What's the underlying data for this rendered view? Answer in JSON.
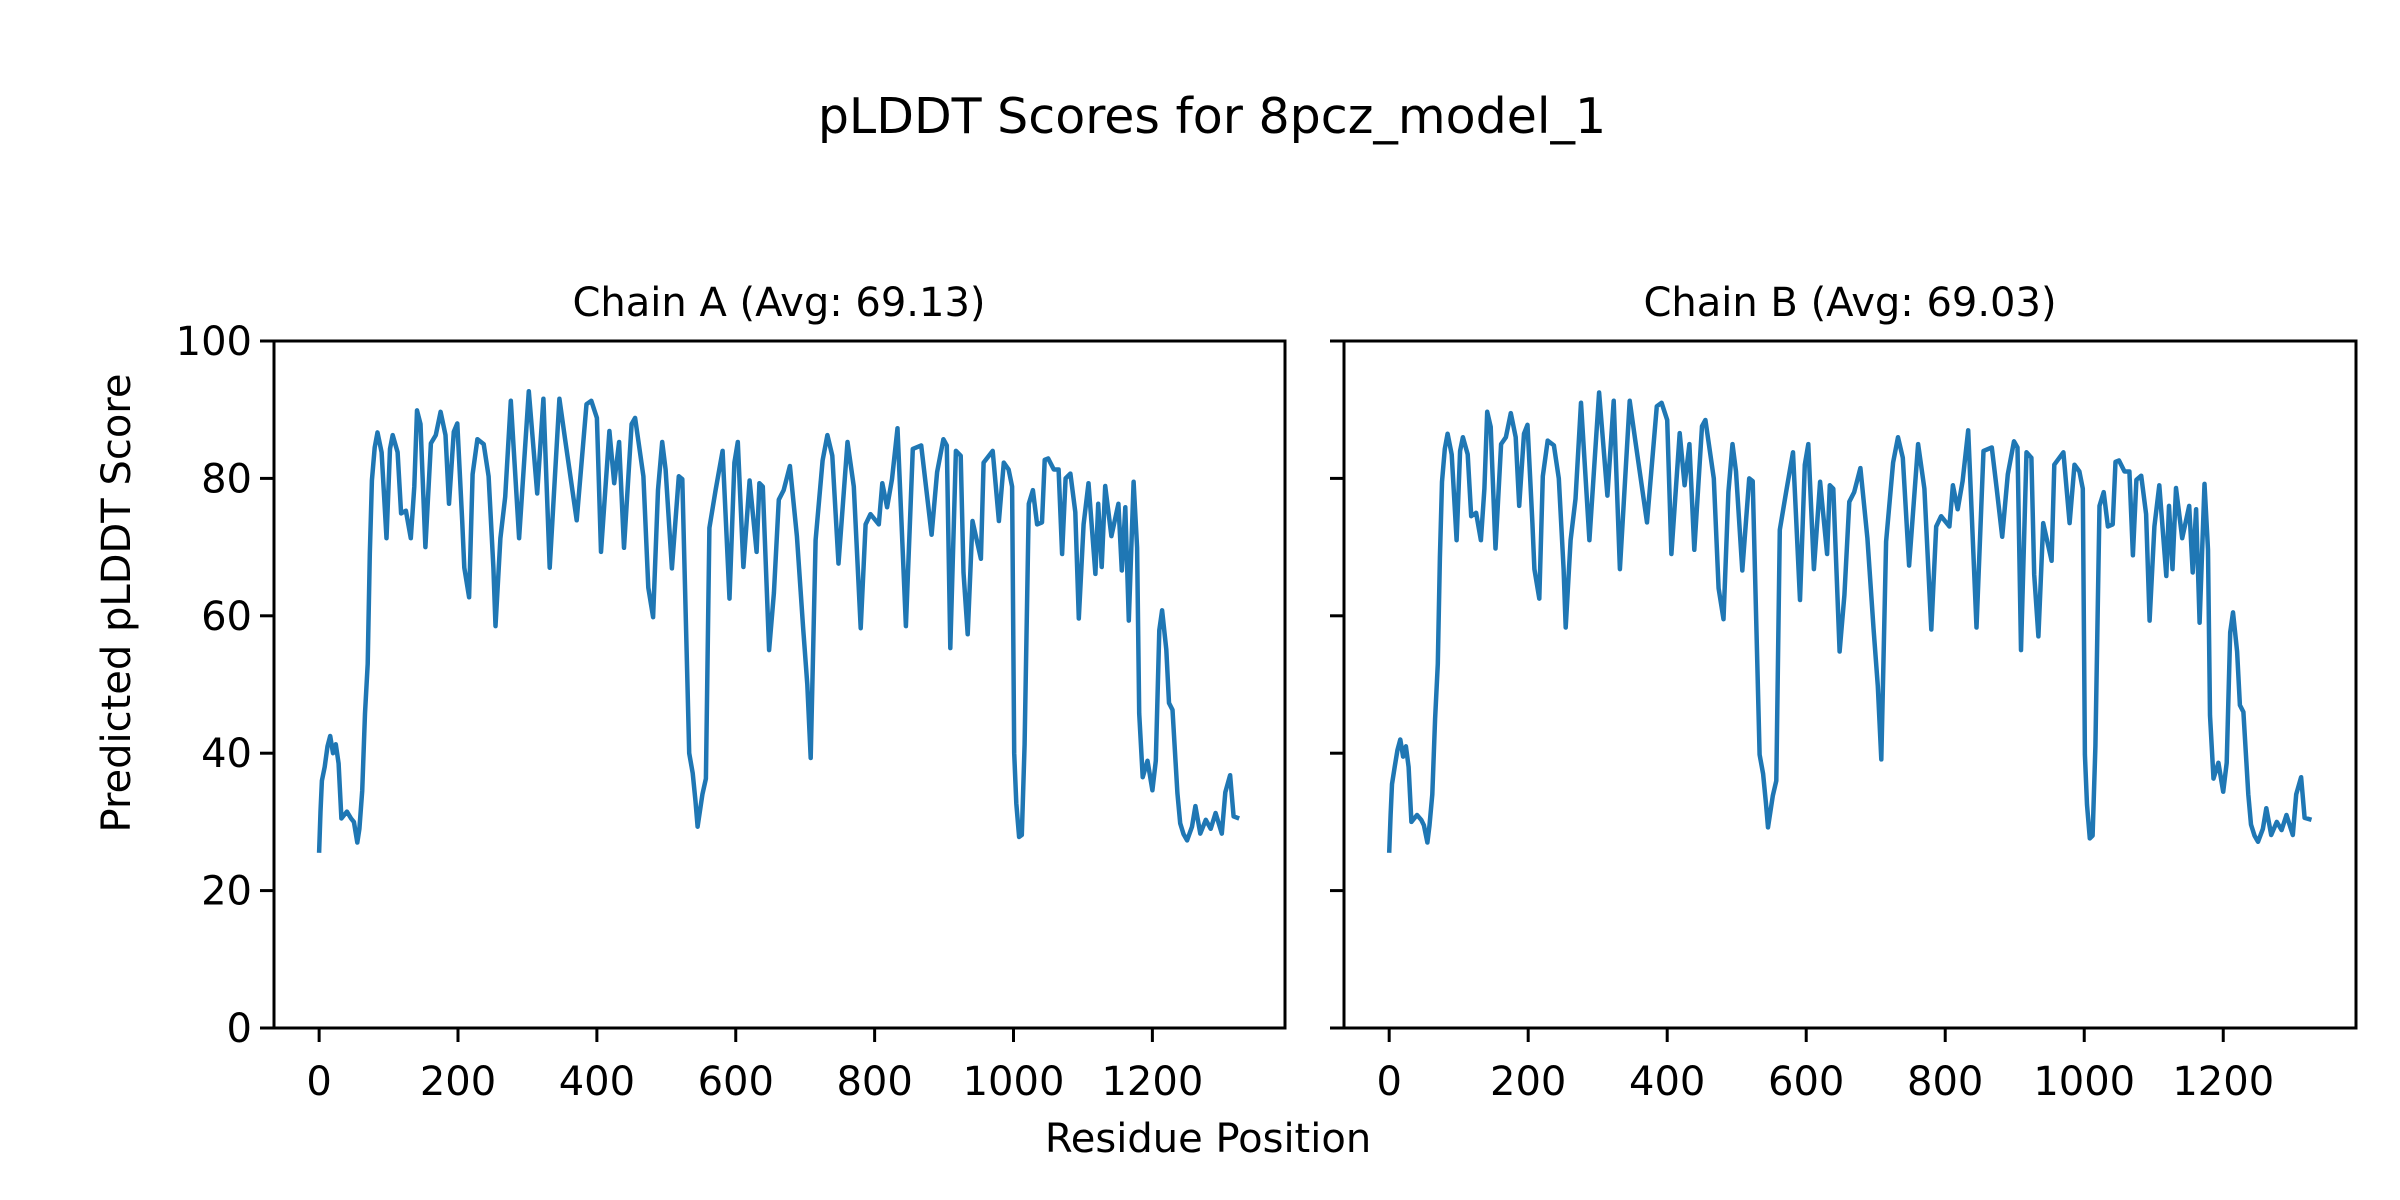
{
  "chart_data": {
    "type": "line",
    "title": "pLDDT Scores for 8pcz_model_1",
    "xlabel": "Residue Position",
    "ylabel": "Predicted pLDDT Score",
    "ylim": [
      0,
      100
    ],
    "xlim": [
      -65,
      1391
    ],
    "grid": false,
    "line_color": "#1f77b4",
    "y_ticks": [
      "0",
      "20",
      "40",
      "60",
      "80",
      "100"
    ],
    "x_ticks": [
      "0",
      "200",
      "400",
      "600",
      "800",
      "1000",
      "1200"
    ],
    "panels": [
      {
        "title": "Chain A (Avg: 69.13)",
        "chain": "A",
        "average": 69.13,
        "x": [
          0,
          2,
          4,
          8,
          12,
          16,
          20,
          24,
          28,
          32,
          40,
          46,
          50,
          55,
          58,
          62,
          66,
          70,
          73,
          76,
          80,
          84,
          90,
          97,
          102,
          106,
          113,
          118,
          125,
          132,
          137,
          141,
          146,
          153,
          161,
          168,
          175,
          182,
          187,
          194,
          199,
          206,
          209,
          216,
          221,
          228,
          237,
          244,
          251,
          254,
          261,
          268,
          276,
          288,
          302,
          314,
          323,
          332,
          346,
          354,
          371,
          385,
          392,
          400,
          406,
          418,
          425,
          432,
          439,
          450,
          455,
          467,
          474,
          481,
          488,
          494,
          499,
          508,
          518,
          523,
          533,
          538,
          542,
          545,
          552,
          557,
          562,
          571,
          581,
          591,
          598,
          603,
          611,
          620,
          630,
          634,
          639,
          648,
          655,
          662,
          669,
          678,
          688,
          697,
          703,
          708,
          715,
          725,
          732,
          739,
          748,
          761,
          770,
          780,
          787,
          794,
          806,
          811,
          818,
          825,
          833,
          845,
          855,
          867,
          874,
          882,
          890,
          899,
          904,
          909,
          917,
          924,
          928,
          934,
          941,
          953,
          957,
          970,
          979,
          986,
          993,
          998,
          1001,
          1004,
          1008,
          1012,
          1016,
          1022,
          1028,
          1034,
          1041,
          1045,
          1050,
          1058,
          1065,
          1070,
          1075,
          1082,
          1089,
          1094,
          1101,
          1108,
          1118,
          1122,
          1127,
          1132,
          1141,
          1151,
          1156,
          1161,
          1166,
          1173,
          1178,
          1181,
          1186,
          1193,
          1200,
          1205,
          1210,
          1214,
          1220,
          1224,
          1229,
          1236,
          1240,
          1245,
          1250,
          1257,
          1262,
          1269,
          1277,
          1284,
          1291,
          1300,
          1305,
          1312,
          1317,
          1325
        ],
        "y": [
          25.5,
          31.5,
          36,
          38,
          41,
          42.5,
          40,
          41.3,
          38.5,
          30.5,
          31.5,
          30.5,
          30,
          27,
          29,
          34.5,
          45.8,
          53,
          69,
          79.7,
          84.5,
          86.7,
          83.8,
          71.3,
          84.3,
          86.3,
          83.8,
          74.9,
          75.3,
          71.3,
          78.8,
          89.9,
          87.9,
          70,
          85.1,
          86.3,
          89.7,
          86.3,
          76.3,
          86.8,
          88,
          73.8,
          67,
          62.7,
          80.6,
          85.7,
          85,
          80.3,
          67,
          58.5,
          71.3,
          77.3,
          91.3,
          71.3,
          92.7,
          77.8,
          91.6,
          67,
          91.6,
          85.9,
          73.9,
          90.8,
          91.3,
          88.8,
          69.3,
          86.9,
          79.3,
          85.3,
          69.9,
          87.9,
          88.8,
          80.3,
          64.1,
          59.8,
          78.3,
          85.3,
          81.3,
          66.9,
          80.3,
          79.9,
          40,
          37.1,
          33,
          29.3,
          34,
          36.3,
          72.8,
          78.3,
          84,
          62.5,
          82.3,
          85.3,
          67.1,
          79.7,
          69.3,
          79.3,
          78.8,
          55,
          63.3,
          76.9,
          78.3,
          81.8,
          71.6,
          58.3,
          50,
          39.3,
          71,
          82.6,
          86.3,
          83.3,
          67.6,
          85.3,
          78.8,
          58.2,
          73.3,
          74.8,
          73.3,
          79.3,
          75.8,
          79.9,
          87.3,
          58.5,
          84.3,
          84.8,
          78.8,
          71.8,
          80.9,
          85.7,
          84.8,
          55.3,
          84,
          83.3,
          66.3,
          57.3,
          73.8,
          68.3,
          82.3,
          84,
          73.8,
          82.3,
          81.3,
          78.8,
          40,
          32.7,
          27.8,
          28.1,
          41.3,
          76.3,
          78.3,
          73.3,
          73.6,
          82.7,
          82.9,
          81.3,
          81.3,
          69,
          80,
          80.7,
          75.1,
          59.6,
          73.3,
          79.3,
          66.1,
          76.3,
          67.1,
          78.9,
          71.6,
          76.3,
          66.6,
          75.8,
          59.3,
          79.5,
          69.9,
          45.8,
          36.5,
          38.9,
          34.6,
          38.9,
          57.9,
          60.8,
          55.1,
          47.3,
          46.3,
          34.2,
          29.8,
          28.2,
          27.3,
          29.3,
          32.3,
          28.3,
          30.3,
          29,
          31.3,
          28.3,
          34.3,
          36.8,
          30.8,
          30.5
        ]
      },
      {
        "title": "Chain B (Avg: 69.03)",
        "chain": "B",
        "average": 69.03,
        "x": [
          0,
          2,
          4,
          8,
          12,
          16,
          20,
          24,
          28,
          32,
          40,
          46,
          50,
          55,
          58,
          62,
          66,
          70,
          73,
          76,
          80,
          84,
          90,
          97,
          102,
          106,
          113,
          118,
          125,
          132,
          137,
          141,
          146,
          153,
          161,
          168,
          175,
          182,
          187,
          194,
          199,
          206,
          209,
          216,
          221,
          228,
          237,
          244,
          251,
          254,
          261,
          268,
          276,
          288,
          302,
          314,
          323,
          332,
          346,
          354,
          371,
          385,
          392,
          400,
          406,
          418,
          425,
          432,
          439,
          450,
          455,
          467,
          474,
          481,
          488,
          494,
          499,
          508,
          518,
          523,
          533,
          538,
          542,
          545,
          552,
          557,
          562,
          571,
          581,
          591,
          598,
          603,
          611,
          620,
          630,
          634,
          639,
          648,
          655,
          662,
          669,
          678,
          688,
          697,
          703,
          708,
          715,
          725,
          732,
          739,
          748,
          761,
          770,
          780,
          787,
          794,
          806,
          811,
          818,
          825,
          833,
          845,
          855,
          867,
          874,
          882,
          890,
          899,
          904,
          909,
          917,
          924,
          928,
          934,
          941,
          953,
          957,
          970,
          979,
          986,
          993,
          998,
          1001,
          1004,
          1008,
          1012,
          1016,
          1022,
          1028,
          1034,
          1041,
          1045,
          1050,
          1058,
          1065,
          1070,
          1075,
          1082,
          1089,
          1094,
          1101,
          1108,
          1118,
          1122,
          1127,
          1132,
          1141,
          1151,
          1156,
          1161,
          1166,
          1173,
          1178,
          1181,
          1186,
          1193,
          1200,
          1205,
          1210,
          1214,
          1220,
          1224,
          1229,
          1236,
          1240,
          1245,
          1250,
          1257,
          1262,
          1269,
          1277,
          1284,
          1291,
          1300,
          1305,
          1312,
          1317,
          1327
        ],
        "y": [
          25.5,
          31,
          35.5,
          38,
          40.5,
          42,
          39.5,
          41,
          38,
          30,
          31,
          30.3,
          29.5,
          27,
          29.5,
          34,
          45,
          53,
          68.5,
          79.5,
          84.3,
          86.5,
          83.5,
          71,
          84,
          86,
          83.5,
          74.5,
          75,
          71,
          78.5,
          89.7,
          87.5,
          69.8,
          85,
          86,
          89.5,
          86,
          76,
          86.5,
          87.8,
          73.5,
          66.8,
          62.5,
          80.3,
          85.5,
          84.8,
          80,
          66.8,
          58.3,
          71,
          77,
          91,
          71,
          92.5,
          77.5,
          91.3,
          66.8,
          91.3,
          85.6,
          73.6,
          90.5,
          91,
          88.5,
          69,
          86.6,
          79,
          85,
          69.6,
          87.6,
          88.5,
          80,
          64,
          59.5,
          78,
          85,
          81,
          66.6,
          80,
          79.6,
          39.8,
          37,
          32.8,
          29.2,
          33.8,
          36,
          72.5,
          78,
          83.8,
          62.3,
          82,
          85,
          66.8,
          79.5,
          69,
          79,
          78.5,
          54.8,
          63,
          76.6,
          78,
          81.5,
          71.3,
          58,
          49.8,
          39.1,
          70.8,
          82.3,
          86,
          83,
          67.3,
          85,
          78.5,
          58,
          73,
          74.5,
          73,
          79,
          75.5,
          79.6,
          87,
          58.3,
          84,
          84.5,
          78.5,
          71.5,
          80.6,
          85.4,
          84.5,
          55,
          83.8,
          83,
          66,
          57,
          73.5,
          68,
          82,
          83.8,
          73.5,
          82,
          81,
          78.5,
          39.8,
          32.5,
          27.6,
          28,
          41,
          76,
          78,
          73,
          73.3,
          82.4,
          82.6,
          81,
          81,
          68.8,
          79.8,
          80.4,
          74.8,
          59.3,
          73,
          79,
          65.8,
          76,
          66.8,
          78.6,
          71.3,
          76,
          66.3,
          75.5,
          59,
          79.2,
          69.6,
          45.5,
          36.3,
          38.6,
          34.4,
          38.6,
          57.6,
          60.5,
          54.8,
          47,
          46,
          34,
          29.6,
          28,
          27.1,
          29,
          32,
          28.1,
          30,
          28.8,
          31,
          28.1,
          34,
          36.5,
          30.6,
          30.3
        ]
      }
    ]
  }
}
